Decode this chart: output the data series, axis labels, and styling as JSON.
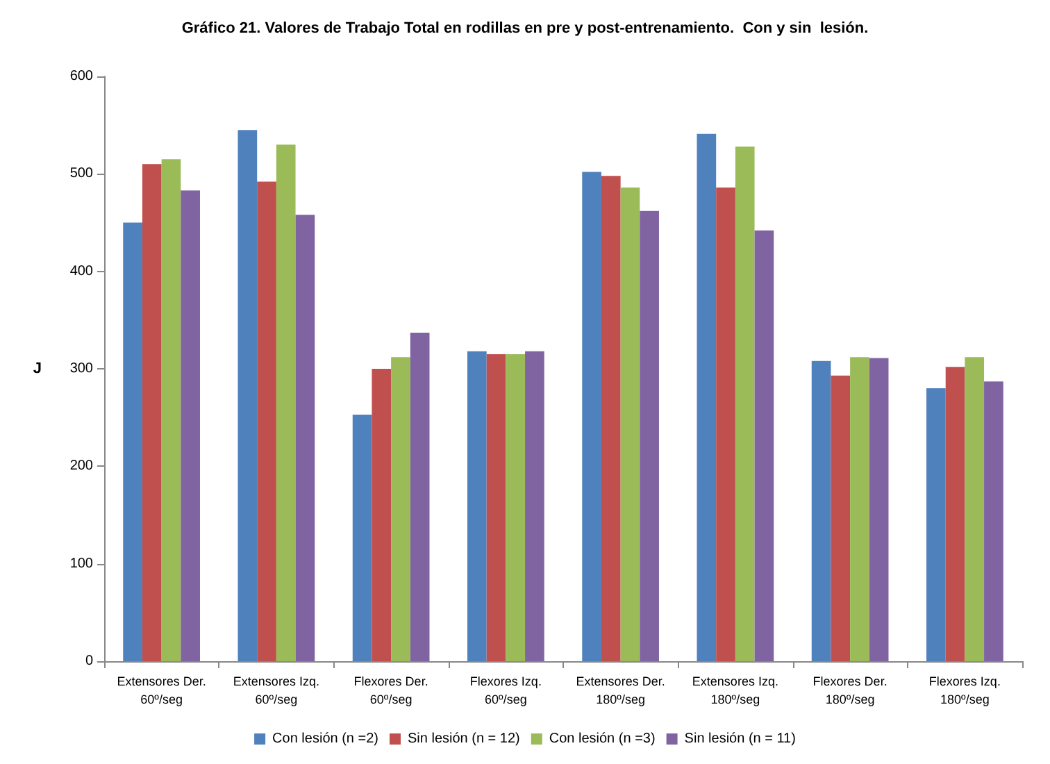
{
  "chart_data": {
    "type": "bar",
    "title": "Gráfico 21. Valores de Trabajo Total en rodillas en pre y post-entrenamiento.  Con y sin  lesión.",
    "ylabel": "J",
    "categories": [
      "Extensores Der.\n60º/seg",
      "Extensores Izq.\n60º/seg",
      "Flexores Der.\n60º/seg",
      "Flexores Izq.\n60º/seg",
      "Extensores Der.\n180º/seg",
      "Extensores Izq.\n180º/seg",
      "Flexores Der.\n180º/seg",
      "Flexores Izq.\n180º/seg"
    ],
    "series": [
      {
        "name": "Con lesión (n =2)",
        "color": "#4f81bd",
        "values": [
          450,
          545,
          253,
          318,
          502,
          541,
          308,
          280
        ]
      },
      {
        "name": "Sin lesión (n = 12)",
        "color": "#c0504d",
        "values": [
          510,
          492,
          300,
          315,
          498,
          486,
          293,
          302
        ]
      },
      {
        "name": "Con lesión (n =3)",
        "color": "#9bbb59",
        "values": [
          515,
          530,
          312,
          315,
          486,
          528,
          312,
          312
        ]
      },
      {
        "name": "Sin lesión (n = 11)",
        "color": "#8064a2",
        "values": [
          483,
          458,
          337,
          318,
          462,
          442,
          311,
          287
        ]
      }
    ],
    "ylim": [
      0,
      600
    ],
    "yticks": [
      0,
      100,
      200,
      300,
      400,
      500,
      600
    ],
    "grid": false,
    "legend": "bottom"
  }
}
